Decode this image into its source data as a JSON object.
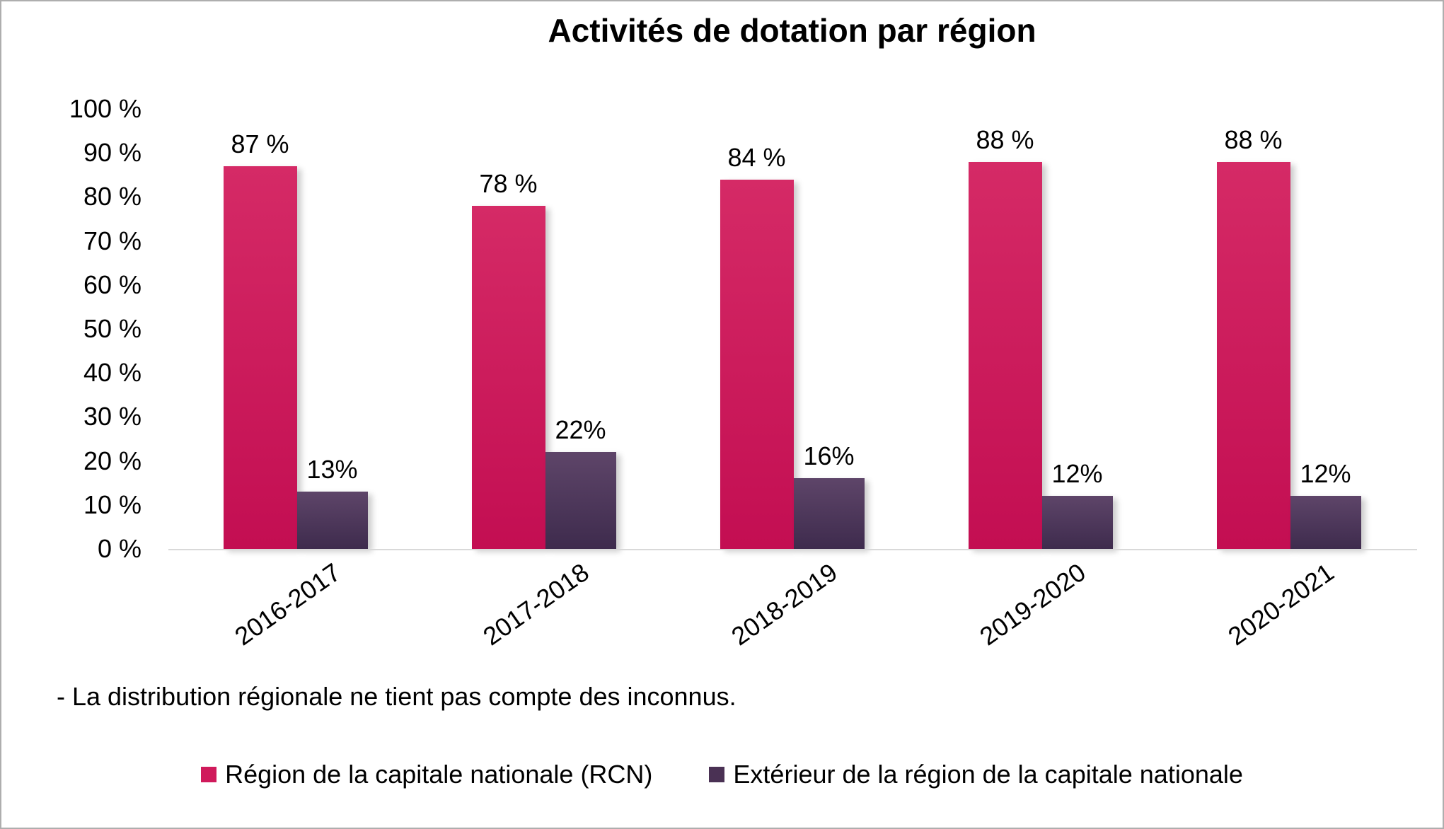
{
  "chart_data": {
    "type": "bar",
    "title": "Activités de dotation par région",
    "categories": [
      "2016-2017",
      "2017-2018",
      "2018-2019",
      "2019-2020",
      "2020-2021"
    ],
    "series": [
      {
        "name": "Région de la capitale nationale (RCN)",
        "color": "#D01A5B",
        "gradient_top": "#D52A66",
        "gradient_bottom": "#C30E52",
        "values": [
          87,
          78,
          84,
          88,
          88
        ],
        "labels": [
          "87 %",
          "78 %",
          "84 %",
          "88 %",
          "88 %"
        ]
      },
      {
        "name": "Extérieur de la région de la capitale nationale",
        "color": "#4A3154",
        "gradient_top": "#5E4569",
        "gradient_bottom": "#3E2B4D",
        "values": [
          13,
          22,
          16,
          12,
          12
        ],
        "labels": [
          "13%",
          "22%",
          "16%",
          "12%",
          "12%"
        ]
      }
    ],
    "ylim": [
      0,
      100
    ],
    "ytick_labels": [
      "100 %",
      "90 %",
      "80 %",
      "70 %",
      "60 %",
      "50 %",
      "40 %",
      "30 %",
      "20 %",
      "10 %",
      "0 %"
    ],
    "grid": false,
    "legend_position": "bottom",
    "axis_line_color": "#D9D9D9",
    "footnote": "- La distribution régionale ne tient pas compte des inconnus."
  }
}
